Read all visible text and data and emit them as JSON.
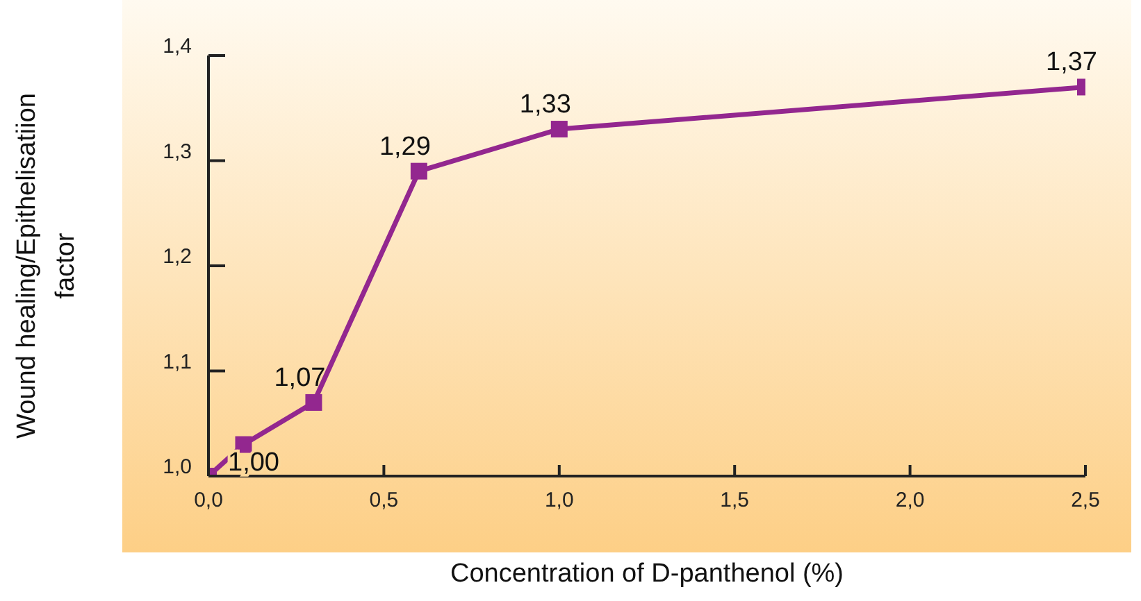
{
  "chart_data": {
    "type": "line",
    "xlabel": "Concentration of D-panthenol (%)",
    "ylabel": "Wound healing/Epithelisatiion factor",
    "x": [
      0,
      0.1,
      0.3,
      0.6,
      1.0,
      2.5
    ],
    "series": [
      {
        "color": "#93278f",
        "values": [
          1.0,
          1.03,
          1.07,
          1.29,
          1.33,
          1.37
        ],
        "value_labels": [
          "1,00",
          null,
          "1,07",
          "1,29",
          "1,33",
          "1,37"
        ]
      }
    ],
    "xlim": [
      0,
      2.5
    ],
    "xticks": [
      {
        "value": 0,
        "label": "0,0"
      },
      {
        "value": 0.5,
        "label": "0,5"
      },
      {
        "value": 1,
        "label": "1,0"
      },
      {
        "value": 1.5,
        "label": "1,5"
      },
      {
        "value": 2,
        "label": "2,0"
      },
      {
        "value": 2.5,
        "label": "2,5"
      }
    ],
    "ylim": [
      1.0,
      1.4
    ],
    "yticks": [
      {
        "value": 1.0,
        "label": "1,0"
      },
      {
        "value": 1.1,
        "label": "1,1"
      },
      {
        "value": 1.2,
        "label": "1,2"
      },
      {
        "value": 1.3,
        "label": "1,3"
      },
      {
        "value": 1.4,
        "label": "1,4"
      }
    ],
    "grid": false,
    "legend": false,
    "marker": "square",
    "line_style": "solid"
  }
}
